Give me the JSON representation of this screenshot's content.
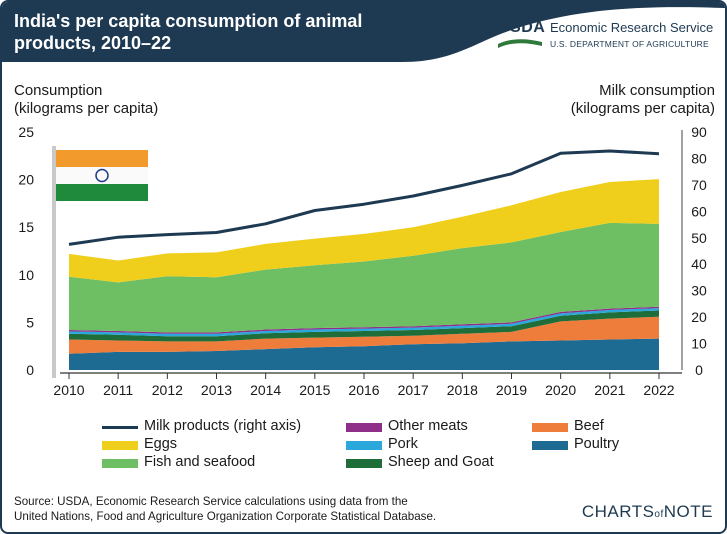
{
  "header": {
    "title": "India's per capita consumption of animal\nproducts, 2010–22",
    "agency_abbr": "USDA",
    "agency_name": "Economic Research Service",
    "agency_dept": "U.S. DEPARTMENT OF AGRICULTURE"
  },
  "axes": {
    "left_label": "Consumption\n(kilograms per capita)",
    "right_label": "Milk consumption\n(kilograms per capita)"
  },
  "legend": {
    "milk": "Milk products (right axis)",
    "other_meats": "Other meats",
    "beef": "Beef",
    "eggs": "Eggs",
    "pork": "Pork",
    "poultry": "Poultry",
    "fish": "Fish and seafood",
    "sheep": "Sheep and Goat"
  },
  "footer": {
    "source": "Source: USDA, Economic Research Service calculations using data from the\nUnited Nations, Food and Agriculture Organization Corporate Statistical Database.",
    "brand_pre": "CHARTS",
    "brand_of": "of",
    "brand_post": "NOTE"
  },
  "colors": {
    "poultry": "#1d6a92",
    "beef": "#ee7c3b",
    "sheep": "#1f6e3a",
    "pork": "#2aa8dc",
    "other_meats": "#8f2f8a",
    "fish": "#6ebf63",
    "eggs": "#f0cf1c",
    "milk": "#1e3a52",
    "header": "#1e3a52"
  },
  "chart_data": {
    "type": "area",
    "title": "India's per capita consumption of animal products, 2010–22",
    "x": [
      2010,
      2011,
      2012,
      2013,
      2014,
      2015,
      2016,
      2017,
      2018,
      2019,
      2020,
      2021,
      2022
    ],
    "ylabel": "Consumption (kilograms per capita)",
    "ylim": [
      0,
      25
    ],
    "yticks": [
      0,
      5,
      10,
      15,
      20,
      25
    ],
    "y2label": "Milk consumption (kilograms per capita)",
    "y2lim": [
      0,
      90
    ],
    "y2ticks": [
      0,
      10,
      20,
      30,
      40,
      50,
      60,
      70,
      80,
      90
    ],
    "stacked_series": [
      {
        "key": "poultry",
        "name": "Poultry",
        "values": [
          1.7,
          1.9,
          1.9,
          2.0,
          2.2,
          2.4,
          2.5,
          2.7,
          2.8,
          3.0,
          3.1,
          3.2,
          3.3
        ]
      },
      {
        "key": "beef",
        "name": "Beef",
        "values": [
          1.5,
          1.2,
          1.1,
          1.0,
          1.1,
          1.0,
          1.0,
          0.9,
          1.0,
          1.0,
          2.0,
          2.2,
          2.3
        ]
      },
      {
        "key": "sheep",
        "name": "Sheep and Goat",
        "values": [
          0.6,
          0.6,
          0.55,
          0.55,
          0.55,
          0.6,
          0.6,
          0.6,
          0.6,
          0.6,
          0.6,
          0.65,
          0.65
        ]
      },
      {
        "key": "pork",
        "name": "Pork",
        "values": [
          0.25,
          0.25,
          0.25,
          0.25,
          0.25,
          0.25,
          0.25,
          0.25,
          0.25,
          0.25,
          0.25,
          0.25,
          0.25
        ]
      },
      {
        "key": "other_meats",
        "name": "Other meats",
        "values": [
          0.15,
          0.15,
          0.15,
          0.15,
          0.15,
          0.15,
          0.15,
          0.15,
          0.15,
          0.15,
          0.15,
          0.15,
          0.15
        ]
      },
      {
        "key": "fish",
        "name": "Fish and seafood",
        "values": [
          5.6,
          5.1,
          5.9,
          5.8,
          6.3,
          6.6,
          6.9,
          7.4,
          8.0,
          8.4,
          8.4,
          9.0,
          8.7
        ]
      },
      {
        "key": "eggs",
        "name": "Eggs",
        "values": [
          2.4,
          2.3,
          2.4,
          2.6,
          2.7,
          2.8,
          2.9,
          3.0,
          3.3,
          3.9,
          4.2,
          4.3,
          4.7
        ]
      }
    ],
    "line_series": {
      "key": "milk",
      "name": "Milk products (right axis)",
      "axis": "right",
      "values": [
        47.5,
        50.2,
        51.2,
        52.0,
        55.3,
        60.3,
        62.7,
        65.8,
        69.8,
        74.2,
        82.0,
        82.8,
        81.8
      ]
    }
  }
}
